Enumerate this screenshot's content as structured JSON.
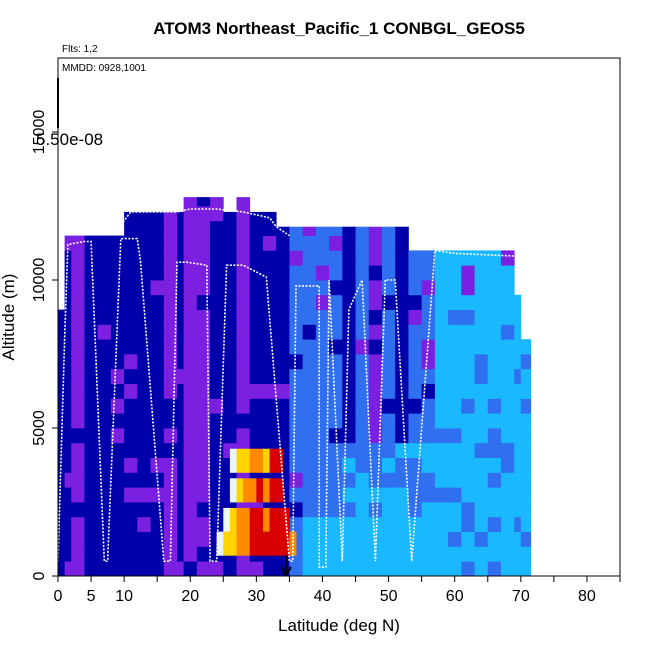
{
  "chart_data": {
    "type": "heatmap",
    "title": "ATOM3 Northeast_Pacific_1 CONBGL_GEOS5",
    "flights_note": "Flts: 1,2",
    "date_note": "MMDD: 0928,1001",
    "overlay_label": "5.50e-08",
    "xlabel": "Latitude (deg N)",
    "ylabel": "Altitude (m)",
    "xlim": [
      0,
      85
    ],
    "ylim": [
      0,
      17500
    ],
    "x_ticks": [
      0,
      5,
      10,
      20,
      30,
      40,
      50,
      60,
      70,
      80
    ],
    "x_minor_ticks": [
      15,
      25,
      35,
      45,
      55,
      65,
      75,
      85
    ],
    "y_ticks": [
      0,
      5000,
      10000,
      15000
    ],
    "colors": {
      "low": "#0000aa",
      "purple": "#7b1fe0",
      "blue": "#2f6ff0",
      "light": "#19b8ff",
      "white": "#e8f6ff",
      "yellow": "#ffd400",
      "orange": "#ff8a00",
      "red": "#d80000"
    },
    "columns": [
      {
        "lat": 0,
        "top": 9000,
        "dom": "low"
      },
      {
        "lat": 1,
        "top": 11500,
        "dom": "low"
      },
      {
        "lat": 2,
        "top": 11500,
        "dom": "purple"
      },
      {
        "lat": 4,
        "top": 11500,
        "dom": "low"
      },
      {
        "lat": 6,
        "top": 11500,
        "dom": "low"
      },
      {
        "lat": 8,
        "top": 11500,
        "dom": "low"
      },
      {
        "lat": 10,
        "top": 12300,
        "dom": "low"
      },
      {
        "lat": 12,
        "top": 12300,
        "dom": "low"
      },
      {
        "lat": 14,
        "top": 12300,
        "dom": "low"
      },
      {
        "lat": 16,
        "top": 12300,
        "dom": "purple"
      },
      {
        "lat": 18,
        "top": 12300,
        "dom": "low"
      },
      {
        "lat": 19,
        "top": 12800,
        "dom": "purple"
      },
      {
        "lat": 21,
        "top": 12800,
        "dom": "purple"
      },
      {
        "lat": 23,
        "top": 12800,
        "dom": "low"
      },
      {
        "lat": 25,
        "top": 12300,
        "dom": "low"
      },
      {
        "lat": 27,
        "top": 12800,
        "dom": "purple"
      },
      {
        "lat": 29,
        "top": 12300,
        "dom": "low"
      },
      {
        "lat": 31,
        "top": 12300,
        "dom": "low"
      },
      {
        "lat": 33,
        "top": 11800,
        "dom": "low"
      },
      {
        "lat": 35,
        "top": 11800,
        "dom": "blue"
      },
      {
        "lat": 37,
        "top": 11800,
        "dom": "blue"
      },
      {
        "lat": 39,
        "top": 11800,
        "dom": "blue"
      },
      {
        "lat": 41,
        "top": 11800,
        "dom": "blue"
      },
      {
        "lat": 43,
        "top": 11800,
        "dom": "low"
      },
      {
        "lat": 45,
        "top": 11800,
        "dom": "blue"
      },
      {
        "lat": 47,
        "top": 11800,
        "dom": "purple"
      },
      {
        "lat": 49,
        "top": 11800,
        "dom": "blue"
      },
      {
        "lat": 51,
        "top": 11800,
        "dom": "low"
      },
      {
        "lat": 53,
        "top": 11000,
        "dom": "blue"
      },
      {
        "lat": 55,
        "top": 11000,
        "dom": "blue"
      },
      {
        "lat": 57,
        "top": 11000,
        "dom": "light"
      },
      {
        "lat": 59,
        "top": 11000,
        "dom": "light"
      },
      {
        "lat": 61,
        "top": 11000,
        "dom": "light"
      },
      {
        "lat": 63,
        "top": 11000,
        "dom": "light"
      },
      {
        "lat": 65,
        "top": 11000,
        "dom": "light"
      },
      {
        "lat": 67,
        "top": 11000,
        "dom": "light"
      },
      {
        "lat": 69,
        "top": 9500,
        "dom": "light"
      },
      {
        "lat": 70,
        "top": 8000,
        "dom": "light"
      }
    ],
    "hotspot": [
      {
        "lat": 26,
        "alt": 3500,
        "c": "white"
      },
      {
        "lat": 27,
        "alt": 3500,
        "c": "yellow"
      },
      {
        "lat": 28,
        "alt": 3500,
        "c": "yellow"
      },
      {
        "lat": 29,
        "alt": 3500,
        "c": "orange"
      },
      {
        "lat": 30,
        "alt": 3500,
        "c": "orange"
      },
      {
        "lat": 31,
        "alt": 3500,
        "c": "yellow"
      },
      {
        "lat": 32,
        "alt": 3500,
        "c": "red"
      },
      {
        "lat": 33,
        "alt": 3500,
        "c": "red"
      },
      {
        "lat": 26,
        "alt": 2500,
        "c": "white"
      },
      {
        "lat": 27,
        "alt": 2500,
        "c": "yellow"
      },
      {
        "lat": 28,
        "alt": 2500,
        "c": "orange"
      },
      {
        "lat": 29,
        "alt": 2500,
        "c": "orange"
      },
      {
        "lat": 30,
        "alt": 2500,
        "c": "red"
      },
      {
        "lat": 31,
        "alt": 2500,
        "c": "orange"
      },
      {
        "lat": 32,
        "alt": 2500,
        "c": "red"
      },
      {
        "lat": 33,
        "alt": 2500,
        "c": "red"
      },
      {
        "lat": 25,
        "alt": 1500,
        "c": "white"
      },
      {
        "lat": 26,
        "alt": 1500,
        "c": "yellow"
      },
      {
        "lat": 27,
        "alt": 1500,
        "c": "orange"
      },
      {
        "lat": 28,
        "alt": 1500,
        "c": "orange"
      },
      {
        "lat": 29,
        "alt": 1500,
        "c": "red"
      },
      {
        "lat": 30,
        "alt": 1500,
        "c": "red"
      },
      {
        "lat": 31,
        "alt": 1500,
        "c": "orange"
      },
      {
        "lat": 32,
        "alt": 1500,
        "c": "red"
      },
      {
        "lat": 33,
        "alt": 1500,
        "c": "red"
      },
      {
        "lat": 34,
        "alt": 1500,
        "c": "red"
      },
      {
        "lat": 24,
        "alt": 700,
        "c": "white"
      },
      {
        "lat": 25,
        "alt": 700,
        "c": "yellow"
      },
      {
        "lat": 26,
        "alt": 700,
        "c": "yellow"
      },
      {
        "lat": 27,
        "alt": 700,
        "c": "orange"
      },
      {
        "lat": 28,
        "alt": 700,
        "c": "orange"
      },
      {
        "lat": 29,
        "alt": 700,
        "c": "red"
      },
      {
        "lat": 30,
        "alt": 700,
        "c": "red"
      },
      {
        "lat": 31,
        "alt": 700,
        "c": "red"
      },
      {
        "lat": 32,
        "alt": 700,
        "c": "red"
      },
      {
        "lat": 33,
        "alt": 700,
        "c": "red"
      },
      {
        "lat": 34,
        "alt": 700,
        "c": "red"
      },
      {
        "lat": 35,
        "alt": 700,
        "c": "orange"
      }
    ],
    "flight_track": [
      [
        0,
        500
      ],
      [
        1,
        8000
      ],
      [
        1.5,
        11200
      ],
      [
        4,
        11300
      ],
      [
        5,
        11300
      ],
      [
        7,
        500
      ],
      [
        7.5,
        500
      ],
      [
        9.5,
        11400
      ],
      [
        12,
        11400
      ],
      [
        12.5,
        10600
      ],
      [
        16,
        500
      ],
      [
        17,
        500
      ],
      [
        18,
        10600
      ],
      [
        19.5,
        10600
      ],
      [
        22.5,
        10500
      ],
      [
        23,
        500
      ],
      [
        24,
        500
      ],
      [
        25.5,
        10500
      ],
      [
        28,
        10500
      ],
      [
        31.5,
        10100
      ],
      [
        35,
        500
      ],
      [
        35.5,
        500
      ],
      [
        36,
        9800
      ],
      [
        38,
        9800
      ],
      [
        39.5,
        9800
      ],
      [
        39.5,
        300
      ],
      [
        40.5,
        300
      ],
      [
        41,
        10000
      ],
      [
        43,
        500
      ],
      [
        44,
        9000
      ],
      [
        46,
        10000
      ],
      [
        48,
        500
      ],
      [
        49.5,
        10000
      ],
      [
        51,
        10000
      ],
      [
        53.5,
        500
      ],
      [
        57,
        11000
      ],
      [
        60,
        10900
      ],
      [
        70,
        10800
      ]
    ],
    "flight_track_2": [
      [
        3,
        11700
      ],
      [
        5,
        11700
      ],
      [
        9,
        11700
      ],
      [
        11,
        12300
      ],
      [
        14,
        12300
      ],
      [
        18,
        12300
      ],
      [
        20,
        12400
      ],
      [
        24,
        12400
      ],
      [
        28,
        12300
      ],
      [
        32,
        12100
      ],
      [
        33,
        11800
      ],
      [
        35,
        11500
      ]
    ],
    "arrow": {
      "lat": 34.5,
      "from_alt": 700,
      "to_alt": 0
    }
  }
}
